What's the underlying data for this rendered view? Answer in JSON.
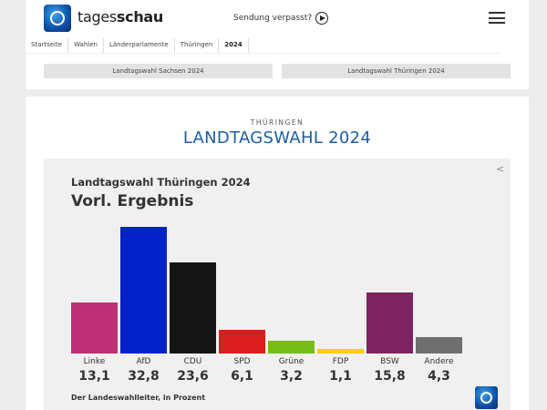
{
  "header": {
    "brand_light": "tages",
    "brand_bold": "schau",
    "missed": "Sendung verpasst?"
  },
  "breadcrumb": [
    "Startseite",
    "Wahlen",
    "Länderparlamente",
    "Thüringen",
    "2024"
  ],
  "tabs": [
    "Landtagswahl Sachsen 2024",
    "Landtagswahl Thüringen 2024"
  ],
  "section": {
    "kicker": "THÜRINGEN",
    "title": "LANDTAGSWAHL 2024"
  },
  "chart_data": {
    "type": "bar",
    "title": "Landtagswahl Thüringen 2024",
    "subtitle": "Vorl. Ergebnis",
    "categories": [
      "Linke",
      "AfD",
      "CDU",
      "SPD",
      "Grüne",
      "FDP",
      "BSW",
      "Andere"
    ],
    "values": [
      13.1,
      32.8,
      23.6,
      6.1,
      3.2,
      1.1,
      15.8,
      4.3
    ],
    "value_labels": [
      "13,1",
      "32,8",
      "23,6",
      "6,1",
      "3,2",
      "1,1",
      "15,8",
      "4,3"
    ],
    "colors": [
      "#be3075",
      "#0022c8",
      "#151515",
      "#d91f1d",
      "#78bc1b",
      "#ffcc00",
      "#7b2460",
      "#6f6f6f"
    ],
    "source": "Der Landeswahlleiter, in Prozent",
    "ylim": [
      0,
      32.8
    ]
  }
}
